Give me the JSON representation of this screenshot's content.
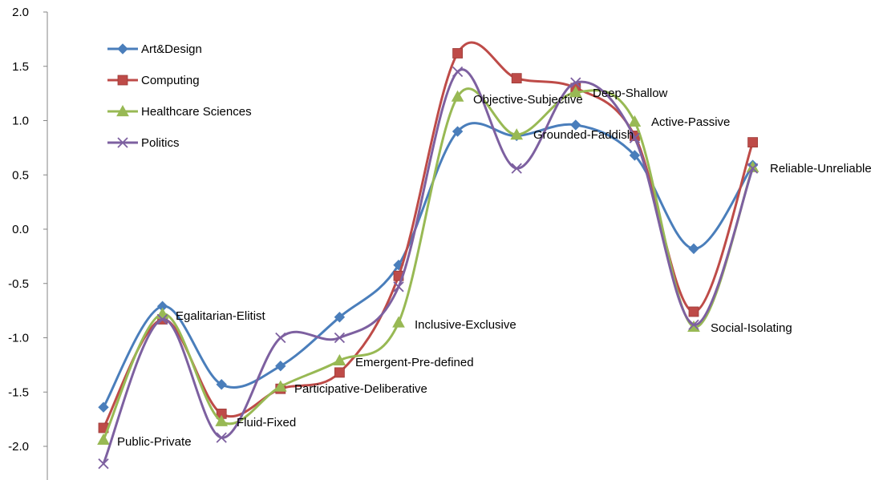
{
  "chart_data": {
    "type": "line",
    "smooth": true,
    "title": "",
    "xlabel": "",
    "ylabel": "",
    "ylim": [
      -2.2,
      2.0
    ],
    "y_ticks": [
      2.0,
      1.5,
      1.0,
      0.5,
      0.0,
      -0.5,
      -1.0,
      -1.5,
      -2.0
    ],
    "y_tick_labels": [
      "2.0",
      "1.5",
      "1.0",
      "0.5",
      "0.0",
      "-0.5",
      "-1.0",
      "-1.5",
      "-2.0"
    ],
    "grid": false,
    "legend_position": "top-left",
    "categories": [
      "Public-Private",
      "Egalitarian-Elitist",
      "Fluid-Fixed",
      "Participative-Deliberative",
      "Emergent-Pre-defined",
      "Inclusive-Exclusive",
      "Objective-Subjective",
      "Grounded-Faddish",
      "Deep-Shallow",
      "Active-Passive",
      "Social-Isolating",
      "Reliable-Unreliable"
    ],
    "series": [
      {
        "name": "Art&Design",
        "color": "#4a7ebb",
        "marker": "diamond",
        "values": [
          -1.64,
          -0.71,
          -1.43,
          -1.26,
          -0.81,
          -0.33,
          0.9,
          0.86,
          0.96,
          0.68,
          -0.18,
          0.59
        ]
      },
      {
        "name": "Computing",
        "color": "#be4b48",
        "marker": "square",
        "values": [
          -1.83,
          -0.83,
          -1.7,
          -1.47,
          -1.32,
          -0.43,
          1.62,
          1.39,
          1.3,
          0.86,
          -0.76,
          0.8
        ]
      },
      {
        "name": "Healthcare Sciences",
        "color": "#98b954",
        "marker": "triangle",
        "values": [
          -1.94,
          -0.78,
          -1.77,
          -1.45,
          -1.21,
          -0.86,
          1.22,
          0.87,
          1.26,
          0.99,
          -0.9,
          0.57
        ]
      },
      {
        "name": "Politics",
        "color": "#7d60a0",
        "marker": "x",
        "values": [
          -2.16,
          -0.83,
          -1.92,
          -1.0,
          -1.0,
          -0.53,
          1.45,
          0.56,
          1.35,
          0.84,
          -0.88,
          0.56
        ]
      }
    ]
  }
}
